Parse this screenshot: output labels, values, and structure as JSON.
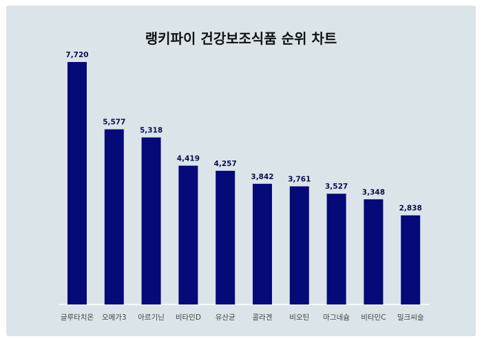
{
  "chart_data": {
    "type": "bar",
    "title": "랭키파이 건강보조식품 순위 차트",
    "categories": [
      "글루타치온",
      "오메가3",
      "아르기닌",
      "비타민D",
      "유산균",
      "콜라겐",
      "비오틴",
      "마그네슘",
      "비타민C",
      "밀크씨슬"
    ],
    "values": [
      7720,
      5577,
      5318,
      4419,
      4257,
      3842,
      3761,
      3527,
      3348,
      2838
    ],
    "value_labels": [
      "7,720",
      "5,577",
      "5,318",
      "4,419",
      "4,257",
      "3,842",
      "3,761",
      "3,527",
      "3,348",
      "2,838"
    ],
    "ylim": [
      0,
      8000
    ],
    "grid": false,
    "colors": {
      "bar": "#050a78",
      "background": "#dbe5e9",
      "value_label": "#0a0f50",
      "axis": "#ffffff"
    }
  }
}
